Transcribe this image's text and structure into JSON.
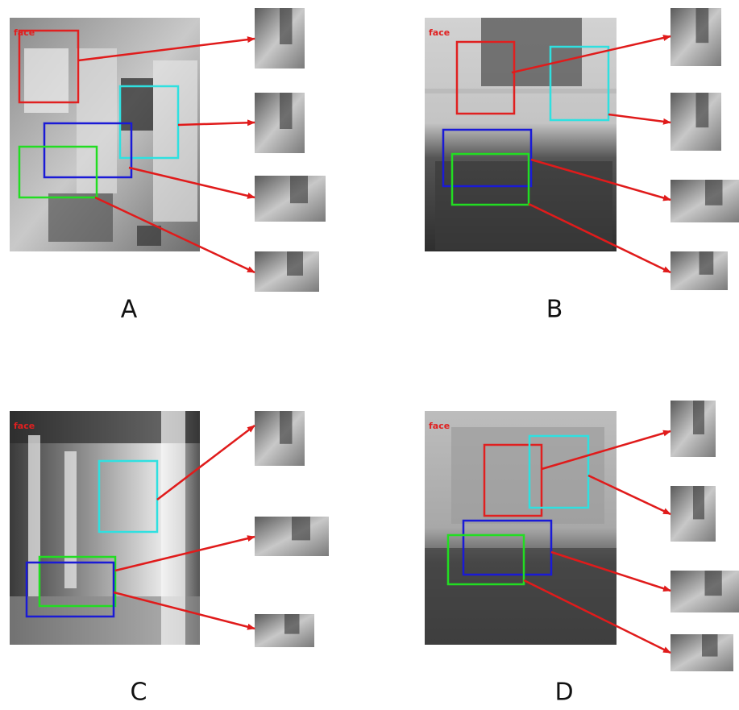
{
  "panels": [
    {
      "label": "A",
      "tag": "face"
    },
    {
      "label": "B",
      "tag": "face"
    },
    {
      "label": "C",
      "tag": "face"
    },
    {
      "label": "D",
      "tag": "face"
    }
  ]
}
